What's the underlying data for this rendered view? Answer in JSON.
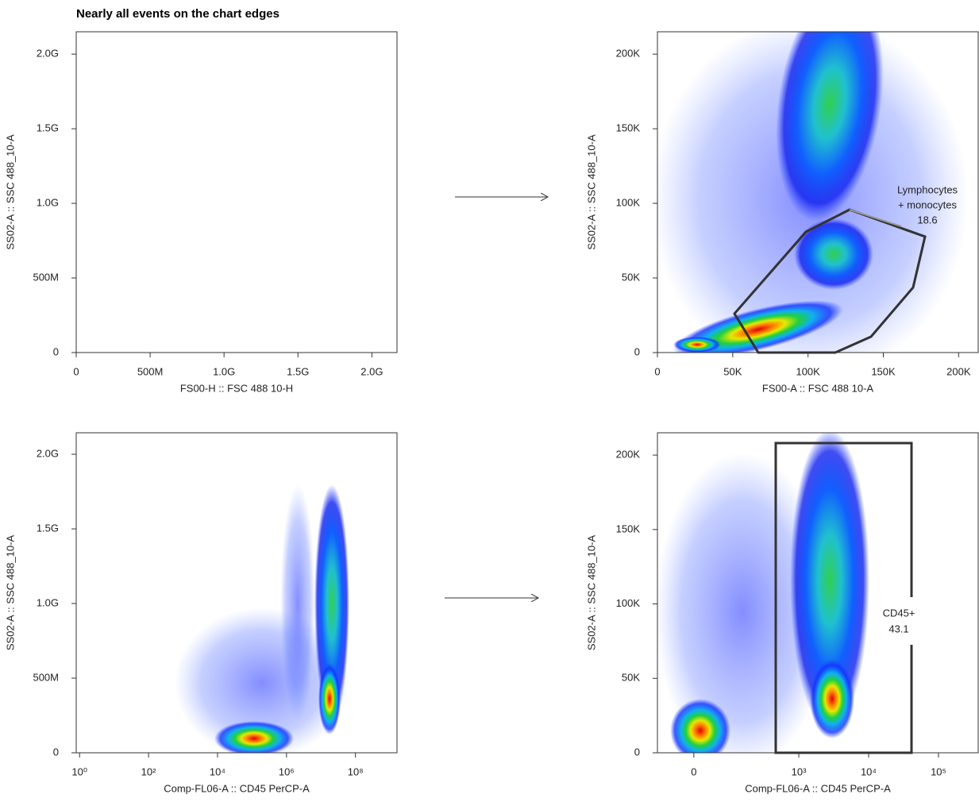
{
  "title": "Nearly all events on the chart edges",
  "chart_data": [
    {
      "type": "density",
      "x_label": "FS00-H :: FSC 488 10-H",
      "y_label": "SS02-A :: SSC 488_10-A",
      "xscale": "linear",
      "xlim": [
        0,
        2170000000
      ],
      "ylim": [
        0,
        2150000000
      ],
      "xticks": [
        0,
        {
          "value": 500000000,
          "label": "500M"
        },
        {
          "value": 1000000000,
          "label": "1.0G"
        },
        {
          "value": 1500000000,
          "label": "1.5G"
        },
        {
          "value": 2000000000,
          "label": "2.0G"
        }
      ],
      "yticks": [
        0,
        {
          "value": 500000000,
          "label": "500M"
        },
        {
          "value": 1000000000,
          "label": "1.0G"
        },
        {
          "value": 1500000000,
          "label": "1.5G"
        },
        {
          "value": 2000000000,
          "label": "2.0G"
        }
      ]
    },
    {
      "type": "density",
      "x_label": "FS00-A :: FSC 488 10-A",
      "y_label": "SS02-A :: SSC 488_10-A",
      "xscale": "linear",
      "xlim": [
        0,
        213000
      ],
      "ylim": [
        0,
        215000
      ],
      "xticks": [
        0,
        {
          "value": 50000,
          "label": "50K"
        },
        {
          "value": 100000,
          "label": "100K"
        },
        {
          "value": 150000,
          "label": "150K"
        },
        {
          "value": 200000,
          "label": "200K"
        }
      ],
      "yticks": [
        0,
        {
          "value": 50000,
          "label": "50K"
        },
        {
          "value": 100000,
          "label": "100K"
        },
        {
          "value": 150000,
          "label": "150K"
        },
        {
          "value": 200000,
          "label": "200K"
        }
      ],
      "gate": {
        "label": [
          "Lymphocytes",
          "+ monocytes"
        ],
        "value": 18.6
      }
    },
    {
      "type": "density",
      "x_label": "Comp-FL06-A :: CD45 PerCP-A",
      "y_label": "SS02-A :: SSC 488_10-A",
      "xscale": "log",
      "xlim": [
        0.8,
        1600000000
      ],
      "ylim": [
        0,
        2144000000
      ],
      "xticks": [
        {
          "value": 1,
          "label": "10⁰"
        },
        {
          "value": 100,
          "label": "10²"
        },
        {
          "value": 10000,
          "label": "10⁴"
        },
        {
          "value": 1000000,
          "label": "10⁶"
        },
        {
          "value": 100000000,
          "label": "10⁸"
        }
      ],
      "yticks": [
        0,
        {
          "value": 500000000,
          "label": "500M"
        },
        {
          "value": 1000000000,
          "label": "1.0G"
        },
        {
          "value": 1500000000,
          "label": "1.5G"
        },
        {
          "value": 2000000000,
          "label": "2.0G"
        }
      ]
    },
    {
      "type": "density",
      "x_label": "Comp-FL06-A :: CD45 PerCP-A",
      "y_label": "SS02-A :: SSC 488_10-A",
      "xscale": "biexponential",
      "xlim": [
        -95,
        370000
      ],
      "ylim": [
        0,
        215000
      ],
      "xticks": [
        0,
        {
          "value": 1000,
          "label": "10³"
        },
        {
          "value": 10000,
          "label": "10⁴"
        },
        {
          "value": 100000,
          "label": "10⁵"
        }
      ],
      "yticks": [
        0,
        {
          "value": 50000,
          "label": "50K"
        },
        {
          "value": 100000,
          "label": "100K"
        },
        {
          "value": 150000,
          "label": "150K"
        },
        {
          "value": 200000,
          "label": "200K"
        }
      ],
      "gate": {
        "label": [
          "CD45+"
        ],
        "value": 43.1
      }
    }
  ]
}
